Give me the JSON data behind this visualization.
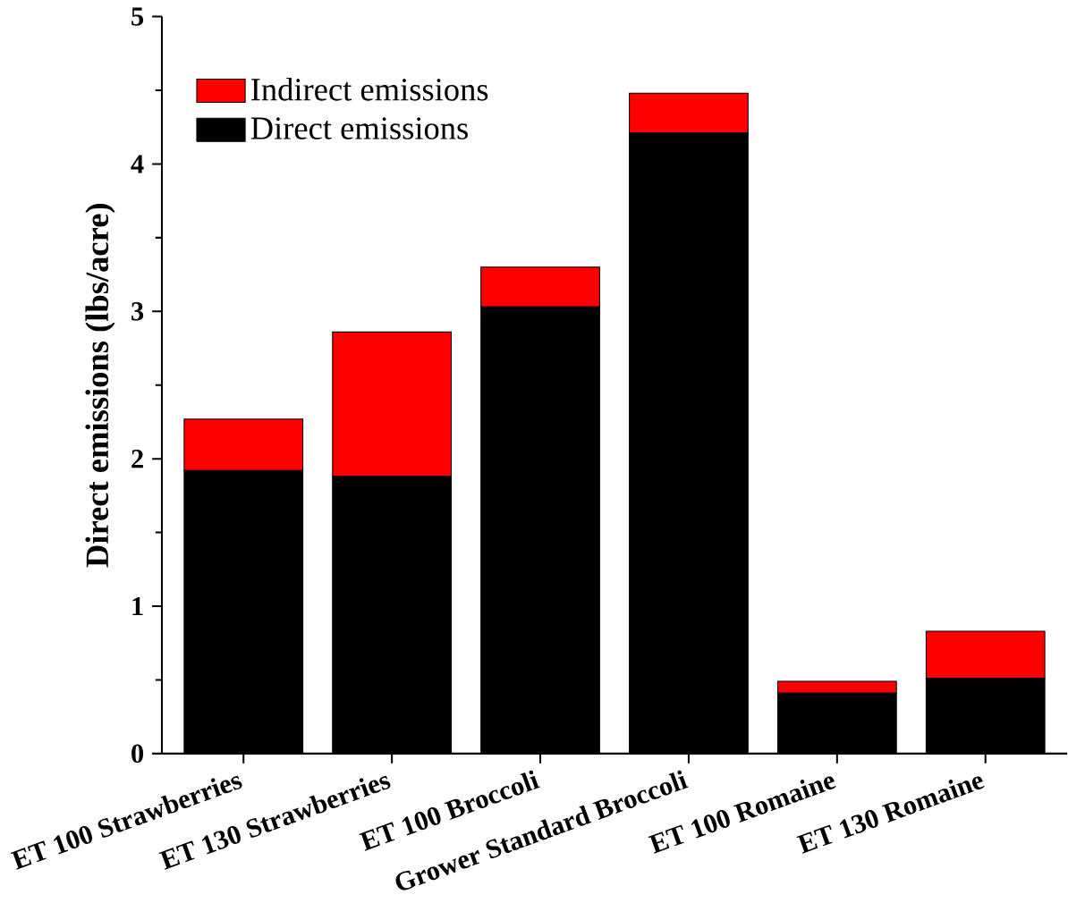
{
  "chart_data": {
    "type": "bar",
    "stacked": true,
    "ylabel": "Direct emissions (lbs/acre)",
    "categories": [
      "ET 100 Strawberries",
      "ET 130 Strawberries",
      "ET 100 Broccoli",
      "Grower Standard Broccoli",
      "ET 100 Romaine",
      "ET 130 Romaine"
    ],
    "series": [
      {
        "name": "Direct emissions",
        "color": "#000000",
        "values": [
          1.92,
          1.88,
          3.03,
          4.21,
          0.41,
          0.51
        ]
      },
      {
        "name": "Indirect emissions",
        "color": "#ff0000",
        "values": [
          0.35,
          0.98,
          0.27,
          0.27,
          0.08,
          0.32
        ]
      }
    ],
    "ylim": [
      0,
      5
    ],
    "yticks": [
      0,
      1,
      2,
      3,
      4,
      5
    ],
    "legend": "top left",
    "grid": false
  }
}
